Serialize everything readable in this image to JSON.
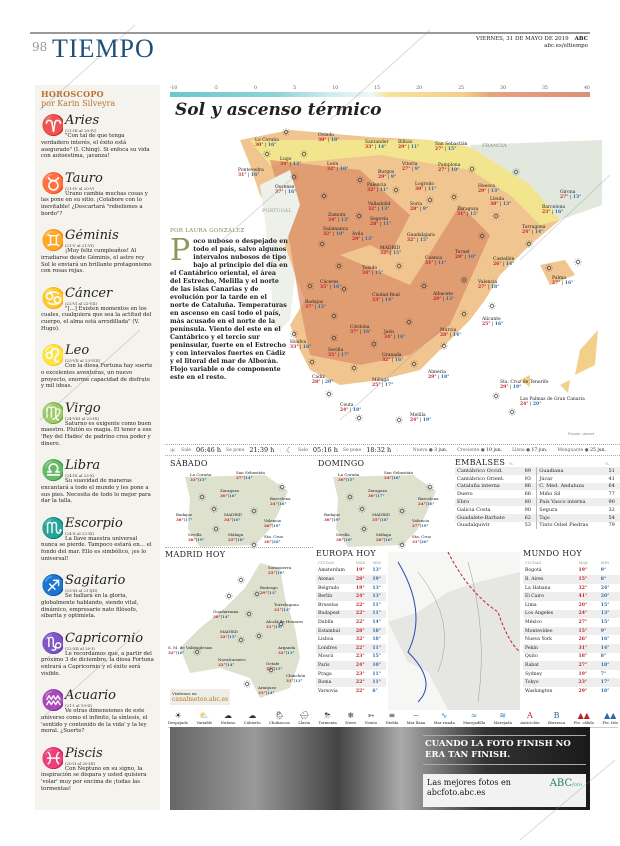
{
  "header": {
    "page_number": "98",
    "section": "TIEMPO",
    "date": "VIERNES, 31 DE MAYO DE 2019",
    "brand": "ABC",
    "url": "abc.es/eltiempo"
  },
  "horoscope": {
    "title": "HOROSCOPO",
    "author": "por Karin Silveyra",
    "signs": [
      {
        "glyph": "♈",
        "name": "Aries",
        "dates": "(21-III al 20-IV)",
        "text": "\"Con tal de que tenga verdadero interés, el éxito está asegurado\" (I. Ching). Si enfoca su vida con autoestima, ¡avanza!"
      },
      {
        "glyph": "♉",
        "name": "Tauro",
        "dates": "(21-IV al 20-V)",
        "text": "Urano cambia muchas cosas y las pone en su sitio. ¡Colabore con lo inevitable! ¿Descartará \"rebeliones a bordo\"?"
      },
      {
        "glyph": "♊",
        "name": "Géminis",
        "dates": "(21-V al 21-VI)",
        "text": "¡Muy feliz cumpleaños! Al irradiarse desde Géminis, el astro rey Sol le enviará un brillante protagonismo con rosas rojas."
      },
      {
        "glyph": "♋",
        "name": "Cáncer",
        "dates": "(22-VI al 22-VII)",
        "text": "\"[...] Existen momentos en los cuales, cualquiera que sea la actitud del cuerpo, el alma está arrodillada\" (V. Hugo)."
      },
      {
        "glyph": "♌",
        "name": "Leo",
        "dates": "(23-VII al 23-VIII)",
        "text": "Con la diosa Fortuna hay suerte o excelentes aventuras, un nuevo proyecto, enorme capacidad de disfrute y mil ideas."
      },
      {
        "glyph": "♍",
        "name": "Virgo",
        "dates": "(24-VIII al 23-IX)",
        "text": "Saturno es exigente como buen maestro. Plutón es magia. El tener a ese 'Rey del Hades' de padrino crea poder y dinero."
      },
      {
        "glyph": "♎",
        "name": "Libra",
        "dates": "(24-IX al 23-X)",
        "text": "Su suavidad de maneras encantará a todo el mundo y les pone a sus pies. Necesita de todo lo mejor para dar la talla."
      },
      {
        "glyph": "♏",
        "name": "Escorpio",
        "dates": "(24-X al 22-XI)",
        "text": "La llave maestra universal nunca se pierde. Tampoco estará en... el fondo del mar. Ello es simbólico, ¡es lo universal!"
      },
      {
        "glyph": "♐",
        "name": "Sagitario",
        "dates": "(23-XI al 21-XII)",
        "text": "Se hallará en la gloria, globalmente hablando, siendo vital, dinámico, empresario nato filósofo, sibarita y optimista."
      },
      {
        "glyph": "♑",
        "name": "Capricornio",
        "dates": "(22-XII al 20-I)",
        "text": "Le recordamos que, a partir del próximo 3 de diciembre, la diosa Fortuna entrará a Capricornio y el éxito será visible."
      },
      {
        "glyph": "♒",
        "name": "Acuario",
        "dates": "(21-I al 19-II)",
        "text": "Ve otras dimensiones de este universo como el infinito, la síntesis, el 'sentido y contenido de la vida' y la ley moral. ¿Suerte?"
      },
      {
        "glyph": "♓",
        "name": "Piscis",
        "dates": "(20-II al 20-III)",
        "text": "Con Neptuno en su signo, la inspiración se dispara y usted quisiera 'volar' muy por encima de ¡todas las tormentas!"
      }
    ]
  },
  "temperature_scale": {
    "ticks": [
      "-10",
      "-5",
      "0",
      "5",
      "10",
      "15",
      "20",
      "25",
      "30",
      "35",
      "40"
    ]
  },
  "forecast": {
    "headline": "Sol y ascenso térmico",
    "byline": "POR LAURA GONZÁLEZ",
    "dropcap": "P",
    "body": "oco nuboso o despejado en todo el país, salvo algunos intervalos nubosos de tipo bajo al principio del día en el Cantábrico oriental, el área del Estrecho, Melilla y el norte de las islas Canarias y de evolución por la tarde en el norte de Cataluña. Temperaturas en ascenso en casi todo el país, más acusado en el norte de la península. Viento del este en el Cantábrico y el tercio sur peninsular, fuerte en el Estrecho y con intervalos fuertes en Cádiz y el litoral del mar de Alborán. Flojo variable o de componente este en el resto."
  },
  "map": {
    "labels": {
      "france": "FRANCIA",
      "portugal": "PORTUGAL",
      "source": "Fuente: Aemet"
    },
    "cities": [
      {
        "name": "La Coruña",
        "max": "30°",
        "min": "16°"
      },
      {
        "name": "Oviedo",
        "max": "30°",
        "min": "18°"
      },
      {
        "name": "Santander",
        "max": "33°",
        "min": "14°"
      },
      {
        "name": "Bilbao",
        "max": "29°",
        "min": "11°"
      },
      {
        "name": "San Sebastián",
        "max": "27°",
        "min": "15°"
      },
      {
        "name": "Pontevedra",
        "max": "31°",
        "min": "16°"
      },
      {
        "name": "Lugo",
        "max": "34°",
        "min": "13°"
      },
      {
        "name": "León",
        "max": "32°",
        "min": "10°"
      },
      {
        "name": "Vitoria",
        "max": "27°",
        "min": "9°"
      },
      {
        "name": "Pamplona",
        "max": "27°",
        "min": "10°"
      },
      {
        "name": "Ourense",
        "max": "37°",
        "min": "16°"
      },
      {
        "name": "Burgos",
        "max": "29°",
        "min": "9°"
      },
      {
        "name": "Palencia",
        "max": "32°",
        "min": "11°"
      },
      {
        "name": "Logroño",
        "max": "30°",
        "min": "11°"
      },
      {
        "name": "Huesca",
        "max": "29°",
        "min": "13°"
      },
      {
        "name": "Girona",
        "max": "27°",
        "min": "13°"
      },
      {
        "name": "Zamora",
        "max": "34°",
        "min": "13°"
      },
      {
        "name": "Valladolid",
        "max": "32°",
        "min": "13°"
      },
      {
        "name": "Soria",
        "max": "28°",
        "min": "9°"
      },
      {
        "name": "Zaragoza",
        "max": "31°",
        "min": "15°"
      },
      {
        "name": "Lleida",
        "max": "30°",
        "min": "13°"
      },
      {
        "name": "Barcelona",
        "max": "23°",
        "min": "16°"
      },
      {
        "name": "Segovia",
        "max": "28°",
        "min": "11°"
      },
      {
        "name": "Salamanca",
        "max": "32°",
        "min": "10°"
      },
      {
        "name": "Tarragona",
        "max": "24°",
        "min": "14°"
      },
      {
        "name": "Ávila",
        "max": "29°",
        "min": "13°"
      },
      {
        "name": "MADRID",
        "max": "32°",
        "min": "15°"
      },
      {
        "name": "Guadalajara",
        "max": "32°",
        "min": "15°"
      },
      {
        "name": "Teruel",
        "max": "29°",
        "min": "10°"
      },
      {
        "name": "Cuenca",
        "max": "31°",
        "min": "11°"
      },
      {
        "name": "Castellón",
        "max": "26°",
        "min": "14°"
      },
      {
        "name": "Toledo",
        "max": "34°",
        "min": "15°"
      },
      {
        "name": "Cáceres",
        "max": "35°",
        "min": "16°"
      },
      {
        "name": "Valencia",
        "max": "27°",
        "min": "18°"
      },
      {
        "name": "Palma",
        "max": "27°",
        "min": "16°"
      },
      {
        "name": "Badajoz",
        "max": "37°",
        "min": "15°"
      },
      {
        "name": "Ciudad Real",
        "max": "33°",
        "min": "14°"
      },
      {
        "name": "Albacete",
        "max": "29°",
        "min": "13°"
      },
      {
        "name": "Alicante",
        "max": "25°",
        "min": "16°"
      },
      {
        "name": "Córdoba",
        "max": "37°",
        "min": "16°"
      },
      {
        "name": "Jaén",
        "max": "34°",
        "min": "16°"
      },
      {
        "name": "Murcia",
        "max": "28°",
        "min": "14°"
      },
      {
        "name": "Huelva",
        "max": "33°",
        "min": "16°"
      },
      {
        "name": "Sevilla",
        "max": "35°",
        "min": "17°"
      },
      {
        "name": "Granada",
        "max": "32°",
        "min": "16°"
      },
      {
        "name": "Almería",
        "max": "29°",
        "min": "18°"
      },
      {
        "name": "Cádiz",
        "max": "28°",
        "min": "20°"
      },
      {
        "name": "Málaga",
        "max": "25°",
        "min": "17°"
      },
      {
        "name": "Ceuta",
        "max": "24°",
        "min": "18°"
      },
      {
        "name": "Melilla",
        "max": "24°",
        "min": "19°"
      },
      {
        "name": "Sta. Cruz de Tenerife",
        "max": "29°",
        "min": "19°"
      },
      {
        "name": "Las Palmas de Gran Canaria",
        "max": "24°",
        "min": "20°"
      }
    ]
  },
  "sun_moon": {
    "sun_rise_label": "Sale",
    "sun_rise": "06:46 h",
    "sun_set_label": "Se pone",
    "sun_set": "21:39 h",
    "moon_rise_label": "Sale",
    "moon_rise": "05:16 h",
    "moon_set_label": "Se pone",
    "moon_set": "18:32 h",
    "phases": [
      {
        "label": "Nueva",
        "date": "3 jun."
      },
      {
        "label": "Creciente",
        "date": "10 jun."
      },
      {
        "label": "Llena",
        "date": "17 jun."
      },
      {
        "label": "Menguante",
        "date": "25 jun."
      }
    ]
  },
  "saturday": {
    "title": "SÁBADO",
    "cities": [
      {
        "name": "La Coruña",
        "max": "33°",
        "min": "15°"
      },
      {
        "name": "San Sebastián",
        "max": "27°",
        "min": "14°"
      },
      {
        "name": "Zaragoza",
        "max": "30°",
        "min": "16°"
      },
      {
        "name": "Barcelona",
        "max": "24°",
        "min": "16°"
      },
      {
        "name": "Badajoz",
        "max": "38°",
        "min": "17°"
      },
      {
        "name": "MADRID",
        "max": "34°",
        "min": "16°"
      },
      {
        "name": "Valencia",
        "max": "26°",
        "min": "19°"
      },
      {
        "name": "Sevilla",
        "max": "38°",
        "min": "19°"
      },
      {
        "name": "Málaga",
        "max": "25°",
        "min": "18°"
      },
      {
        "name": "Sta. Cruz",
        "max": "30°",
        "min": "20°"
      }
    ]
  },
  "sunday": {
    "title": "DOMINGO",
    "cities": [
      {
        "name": "La Coruña",
        "max": "30°",
        "min": "15°"
      },
      {
        "name": "San Sebastián",
        "max": "24°",
        "min": "16°"
      },
      {
        "name": "Zaragoza",
        "max": "30°",
        "min": "17°"
      },
      {
        "name": "Barcelona",
        "max": "24°",
        "min": "16°"
      },
      {
        "name": "Badajoz",
        "max": "38°",
        "min": "19°"
      },
      {
        "name": "MADRID",
        "max": "35°",
        "min": "18°"
      },
      {
        "name": "Valencia",
        "max": "27°",
        "min": "19°"
      },
      {
        "name": "Sevilla",
        "max": "38°",
        "min": "18°"
      },
      {
        "name": "Málaga",
        "max": "26°",
        "min": "16°"
      },
      {
        "name": "Sta. Cruz",
        "max": "31°",
        "min": "20°"
      }
    ]
  },
  "reservoirs": {
    "title": "EMBALSES",
    "unit": "%",
    "left": [
      {
        "name": "Cantábrico Occid.",
        "value": "89"
      },
      {
        "name": "Cantábrico Orient.",
        "value": "93"
      },
      {
        "name": "Cataluña interna",
        "value": "86"
      },
      {
        "name": "Duero",
        "value": "66"
      },
      {
        "name": "Ebro",
        "value": "80"
      },
      {
        "name": "Galicia Costa",
        "value": "90"
      },
      {
        "name": "Guadalete-Barbate",
        "value": "62"
      },
      {
        "name": "Guadalquivir",
        "value": "53"
      }
    ],
    "right": [
      {
        "name": "Guadiana",
        "value": "51"
      },
      {
        "name": "Júcar",
        "value": "41"
      },
      {
        "name": "C. Med. Andaluza",
        "value": "64"
      },
      {
        "name": "Miño Sil",
        "value": "77"
      },
      {
        "name": "País Vasco interna",
        "value": "90"
      },
      {
        "name": "Segura",
        "value": "32"
      },
      {
        "name": "Tajo",
        "value": "54"
      },
      {
        "name": "Tinto Odiel Piedras",
        "value": "79"
      }
    ]
  },
  "madrid": {
    "title": "MADRID HOY",
    "visit": "Visítenos en",
    "site": "canalmeteo.abc.es",
    "cities": [
      {
        "name": "Somosierra",
        "max": "25°",
        "min": "10°"
      },
      {
        "name": "Buitrago",
        "max": "29°",
        "min": "13°"
      },
      {
        "name": "Torrelaguna",
        "max": "31°",
        "min": "13°"
      },
      {
        "name": "Guadarrama",
        "max": "30°",
        "min": "14°"
      },
      {
        "name": "Alcalá de Henares",
        "max": "31°",
        "min": "15°"
      },
      {
        "name": "MADRID",
        "max": "32°",
        "min": "15°"
      },
      {
        "name": "S. M. de Valdeiglesias",
        "max": "32°",
        "min": "16°"
      },
      {
        "name": "Navalcarnero",
        "max": "32°",
        "min": "14°"
      },
      {
        "name": "Getafe",
        "max": "32°",
        "min": "15°"
      },
      {
        "name": "Arganda",
        "max": "32°",
        "min": "13°"
      },
      {
        "name": "Chinchón",
        "max": "31°",
        "min": "13°"
      },
      {
        "name": "Aranjuez",
        "max": "33°",
        "min": "14°"
      }
    ]
  },
  "europe": {
    "title": "EUROPA HOY",
    "headers": [
      "CIUDAD",
      "MAX",
      "MIN"
    ],
    "rows": [
      [
        "Amsterdam",
        "19°",
        "13°"
      ],
      [
        "Atenas",
        "28°",
        "19°"
      ],
      [
        "Belgrado",
        "19°",
        "13°"
      ],
      [
        "Berlín",
        "24°",
        "13°"
      ],
      [
        "Bruselas",
        "22°",
        "11°"
      ],
      [
        "Budapest",
        "22°",
        "11°"
      ],
      [
        "Dublín",
        "22°",
        "14°"
      ],
      [
        "Estambul",
        "28°",
        "18°"
      ],
      [
        "Lisboa",
        "32°",
        "18°"
      ],
      [
        "Londres",
        "22°",
        "11°"
      ],
      [
        "Moscú",
        "23°",
        "15°"
      ],
      [
        "París",
        "24°",
        "10°"
      ],
      [
        "Praga",
        "23°",
        "11°"
      ],
      [
        "Roma",
        "22°",
        "11°"
      ],
      [
        "Varsovia",
        "22°",
        "6°"
      ]
    ]
  },
  "world": {
    "title": "MUNDO HOY",
    "headers": [
      "CIUDAD",
      "MAX",
      "MIN"
    ],
    "rows": [
      [
        "Bogotá",
        "19°",
        "9°"
      ],
      [
        "B. Aires",
        "15°",
        "8°"
      ],
      [
        "La Habana",
        "32°",
        "24°"
      ],
      [
        "El Cairo",
        "41°",
        "20°"
      ],
      [
        "Lima",
        "20°",
        "15°"
      ],
      [
        "Los Angeles",
        "24°",
        "13°"
      ],
      [
        "México",
        "27°",
        "15°"
      ],
      [
        "Montevideo",
        "15°",
        "9°"
      ],
      [
        "Nueva York",
        "26°",
        "16°"
      ],
      [
        "Pekín",
        "31°",
        "14°"
      ],
      [
        "Quito",
        "18°",
        "8°"
      ],
      [
        "Rabat",
        "27°",
        "18°"
      ],
      [
        "Sydney",
        "19°",
        "7°"
      ],
      [
        "Tokyo",
        "23°",
        "17°"
      ],
      [
        "Washington",
        "29°",
        "18°"
      ]
    ]
  },
  "legend": [
    {
      "icon": "☀",
      "label": "Despejado"
    },
    {
      "icon": "⛅",
      "label": "Variable"
    },
    {
      "icon": "☁",
      "label": "Nuboso"
    },
    {
      "icon": "☁",
      "label": "Cubierto"
    },
    {
      "icon": "🌦",
      "label": "Chubascos"
    },
    {
      "icon": "🌧",
      "label": "Lluvia"
    },
    {
      "icon": "⛈",
      "label": "Tormenta"
    },
    {
      "icon": "❄",
      "label": "Nieve"
    },
    {
      "icon": "➳",
      "label": "Viento"
    },
    {
      "icon": "≡",
      "label": "Niebla"
    },
    {
      "icon": "~",
      "label": "Mar llana"
    },
    {
      "icon": "∿",
      "label": "Mar rizada"
    },
    {
      "icon": "≈",
      "label": "Marejadilla"
    },
    {
      "icon": "≋",
      "label": "Marejada"
    },
    {
      "icon": "A",
      "label": "Anticiclón"
    },
    {
      "icon": "B",
      "label": "Borrasca"
    },
    {
      "icon": "▲▲",
      "label": "Fte. cálido"
    },
    {
      "icon": "▲▲",
      "label": "Fte. frío"
    }
  ],
  "ad": {
    "headline": "CUANDO LA FOTO FINISH NO ERA TAN FINISH.",
    "tagline": "Las mejores fotos en abcfoto.abc.es",
    "logo": "ABC",
    "logo_suffix": "foto"
  },
  "colors": {
    "section_title": "#1f4e79",
    "horoscope_accent": "#b8722c",
    "zodiac": "#4a72c4",
    "max_temp": "#c0202a",
    "min_temp": "#2a6aa8"
  }
}
